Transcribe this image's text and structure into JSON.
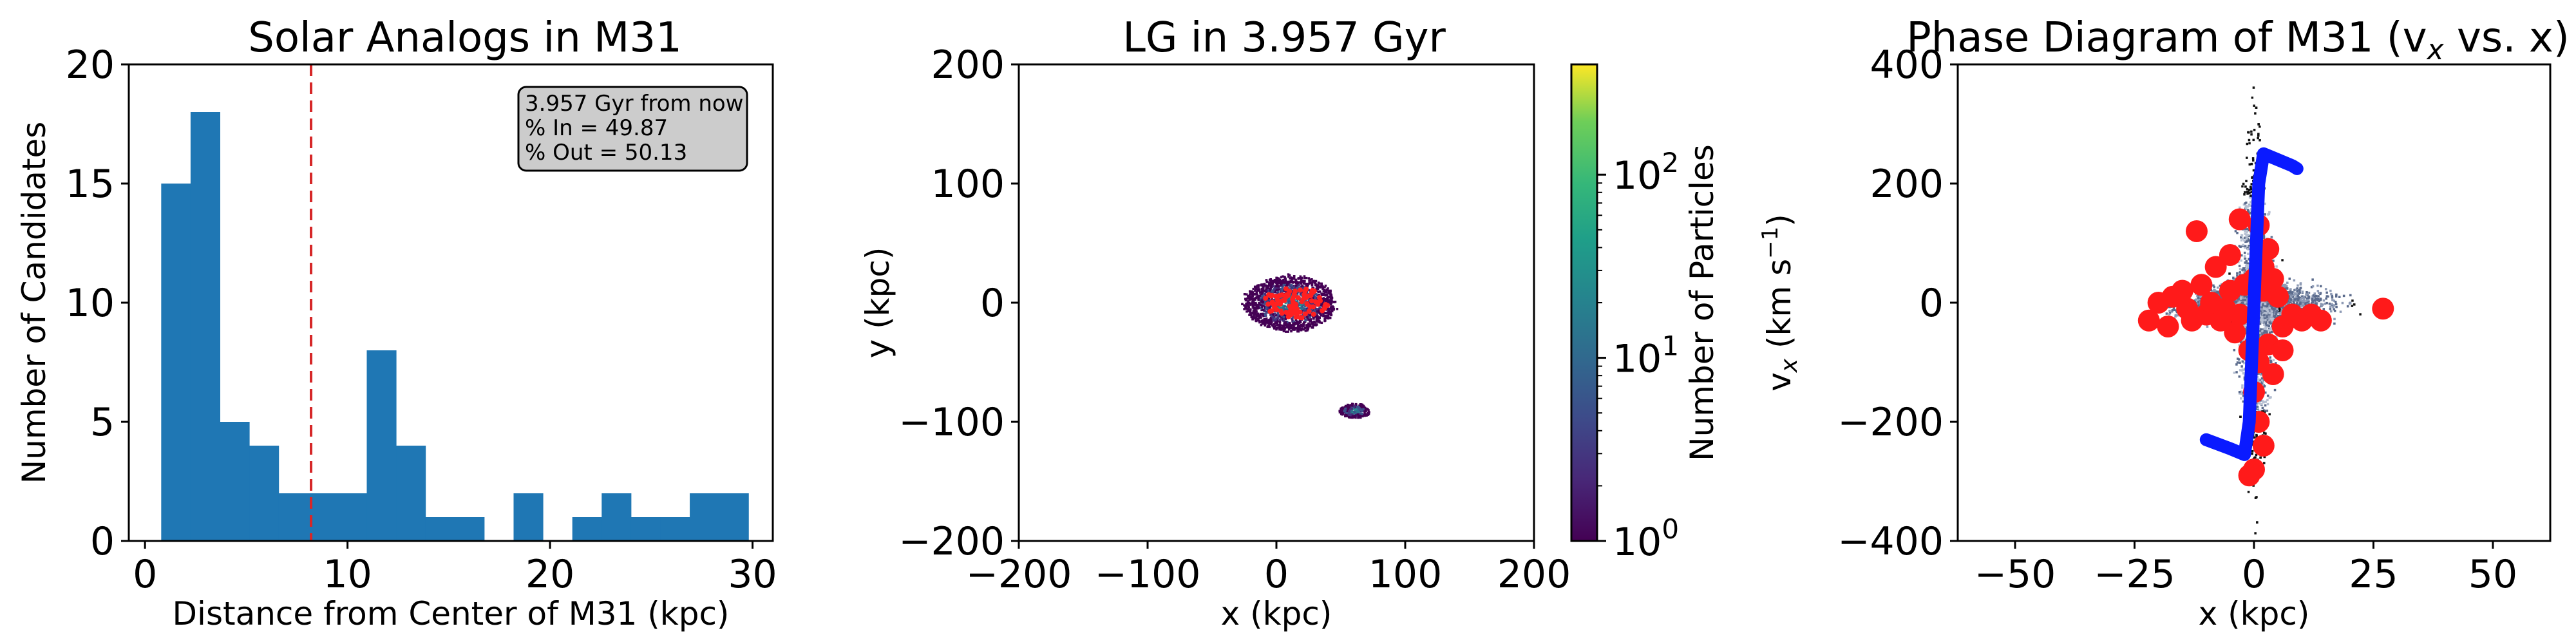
{
  "chart_data": [
    {
      "type": "bar",
      "title": "Solar Analogs in M31",
      "xlabel": "Distance from Center of M31 (kpc)",
      "ylabel": "Number of Candidates",
      "xlim": [
        -0.8,
        31.0
      ],
      "ylim": [
        0,
        20
      ],
      "xticks": [
        "0",
        "10",
        "20",
        "30"
      ],
      "xtick_values": [
        0,
        10,
        20,
        30
      ],
      "yticks": [
        "0",
        "5",
        "10",
        "15",
        "20"
      ],
      "ytick_values": [
        0,
        5,
        10,
        15,
        20
      ],
      "bin_edges": [
        0.8,
        2.25,
        3.7,
        5.15,
        6.6,
        8.05,
        9.5,
        10.95,
        12.4,
        13.85,
        15.3,
        16.75,
        18.2,
        19.65,
        21.1,
        22.55,
        24.0,
        25.45,
        26.9,
        28.35,
        29.8
      ],
      "values": [
        15,
        18,
        5,
        4,
        2,
        2,
        2,
        8,
        4,
        1,
        1,
        0,
        2,
        0,
        1,
        2,
        1,
        1,
        2,
        2
      ],
      "color": "#1f77b4",
      "vline": {
        "x": 8.2,
        "color": "#d62728",
        "style": "dashed"
      },
      "annotation": [
        "3.957 Gyr from now",
        "% In = 49.87",
        "% Out = 50.13"
      ]
    },
    {
      "type": "heatmap",
      "title": "LG in 3.957 Gyr",
      "xlabel": "x (kpc)",
      "ylabel": "y (kpc)",
      "xlim": [
        -200,
        200
      ],
      "ylim": [
        -200,
        200
      ],
      "xticks": [
        "−200",
        "−100",
        "0",
        "100",
        "200"
      ],
      "xtick_values": [
        -200,
        -100,
        0,
        100,
        200
      ],
      "yticks": [
        "−200",
        "−100",
        "0",
        "100",
        "200"
      ],
      "ytick_values": [
        -200,
        -100,
        0,
        100,
        200
      ],
      "colorbar": {
        "label": "Number of Particles",
        "scale": "log",
        "range": [
          1,
          400
        ],
        "ticks": [
          {
            "value": 1,
            "base": "10",
            "exp": "0"
          },
          {
            "value": 10,
            "base": "10",
            "exp": "1"
          },
          {
            "value": 100,
            "base": "10",
            "exp": "2"
          }
        ]
      },
      "blobs": [
        {
          "name": "M31 remnant",
          "cx": 10,
          "cy": 0,
          "rx": 35,
          "ry": 23
        },
        {
          "name": "satellite",
          "cx": 60,
          "cy": -90,
          "rx": 12,
          "ry": 6
        }
      ],
      "red_points_region": {
        "cx": 15,
        "cy": 0,
        "rx": 25,
        "ry": 13
      }
    },
    {
      "type": "scatter",
      "title": "Phase Diagram of M31 (v",
      "title_sub": "x",
      "title_tail": " vs. x)",
      "xlabel": "x (kpc)",
      "ylabel": "v",
      "ylabel_sub": "x",
      "ylabel_tail": " (km s",
      "ylabel_sup": "−1",
      "ylabel_end": ")",
      "xlim": [
        -62,
        62
      ],
      "ylim": [
        -400,
        400
      ],
      "xticks": [
        "−50",
        "−25",
        "0",
        "25",
        "50"
      ],
      "xtick_values": [
        -50,
        -25,
        0,
        25,
        50
      ],
      "yticks": [
        "−400",
        "−200",
        "0",
        "200",
        "400"
      ],
      "ytick_values": [
        -400,
        -200,
        0,
        200,
        400
      ],
      "red_points": [
        [
          -12,
          120
        ],
        [
          -8,
          60
        ],
        [
          -5,
          80
        ],
        [
          -3,
          140
        ],
        [
          1,
          130
        ],
        [
          3,
          90
        ],
        [
          -2,
          30
        ],
        [
          2,
          20
        ],
        [
          5,
          10
        ],
        [
          8,
          -20
        ],
        [
          10,
          -30
        ],
        [
          12,
          -20
        ],
        [
          -15,
          20
        ],
        [
          -17,
          10
        ],
        [
          -14,
          -10
        ],
        [
          -10,
          -20
        ],
        [
          -7,
          -30
        ],
        [
          -4,
          -50
        ],
        [
          -1,
          -80
        ],
        [
          1,
          -100
        ],
        [
          3,
          -70
        ],
        [
          6,
          -40
        ],
        [
          -20,
          0
        ],
        [
          -22,
          -30
        ],
        [
          -18,
          -40
        ],
        [
          -9,
          0
        ],
        [
          -6,
          -10
        ],
        [
          0,
          -150
        ],
        [
          1,
          -200
        ],
        [
          2,
          -240
        ],
        [
          0,
          -280
        ],
        [
          -1,
          -290
        ],
        [
          4,
          -120
        ],
        [
          2,
          60
        ],
        [
          4,
          40
        ],
        [
          -11,
          30
        ],
        [
          -13,
          -30
        ],
        [
          14,
          -30
        ],
        [
          27,
          -10
        ],
        [
          0,
          40
        ],
        [
          -3,
          -20
        ],
        [
          6,
          -80
        ],
        [
          -5,
          20
        ]
      ],
      "blue_curve": [
        [
          -10,
          -230
        ],
        [
          -5,
          -245
        ],
        [
          -2,
          -255
        ],
        [
          -1,
          -200
        ],
        [
          -0.5,
          -100
        ],
        [
          0,
          0
        ],
        [
          0.5,
          100
        ],
        [
          1,
          200
        ],
        [
          2,
          250
        ],
        [
          5,
          240
        ],
        [
          8,
          230
        ],
        [
          9,
          225
        ]
      ]
    }
  ]
}
